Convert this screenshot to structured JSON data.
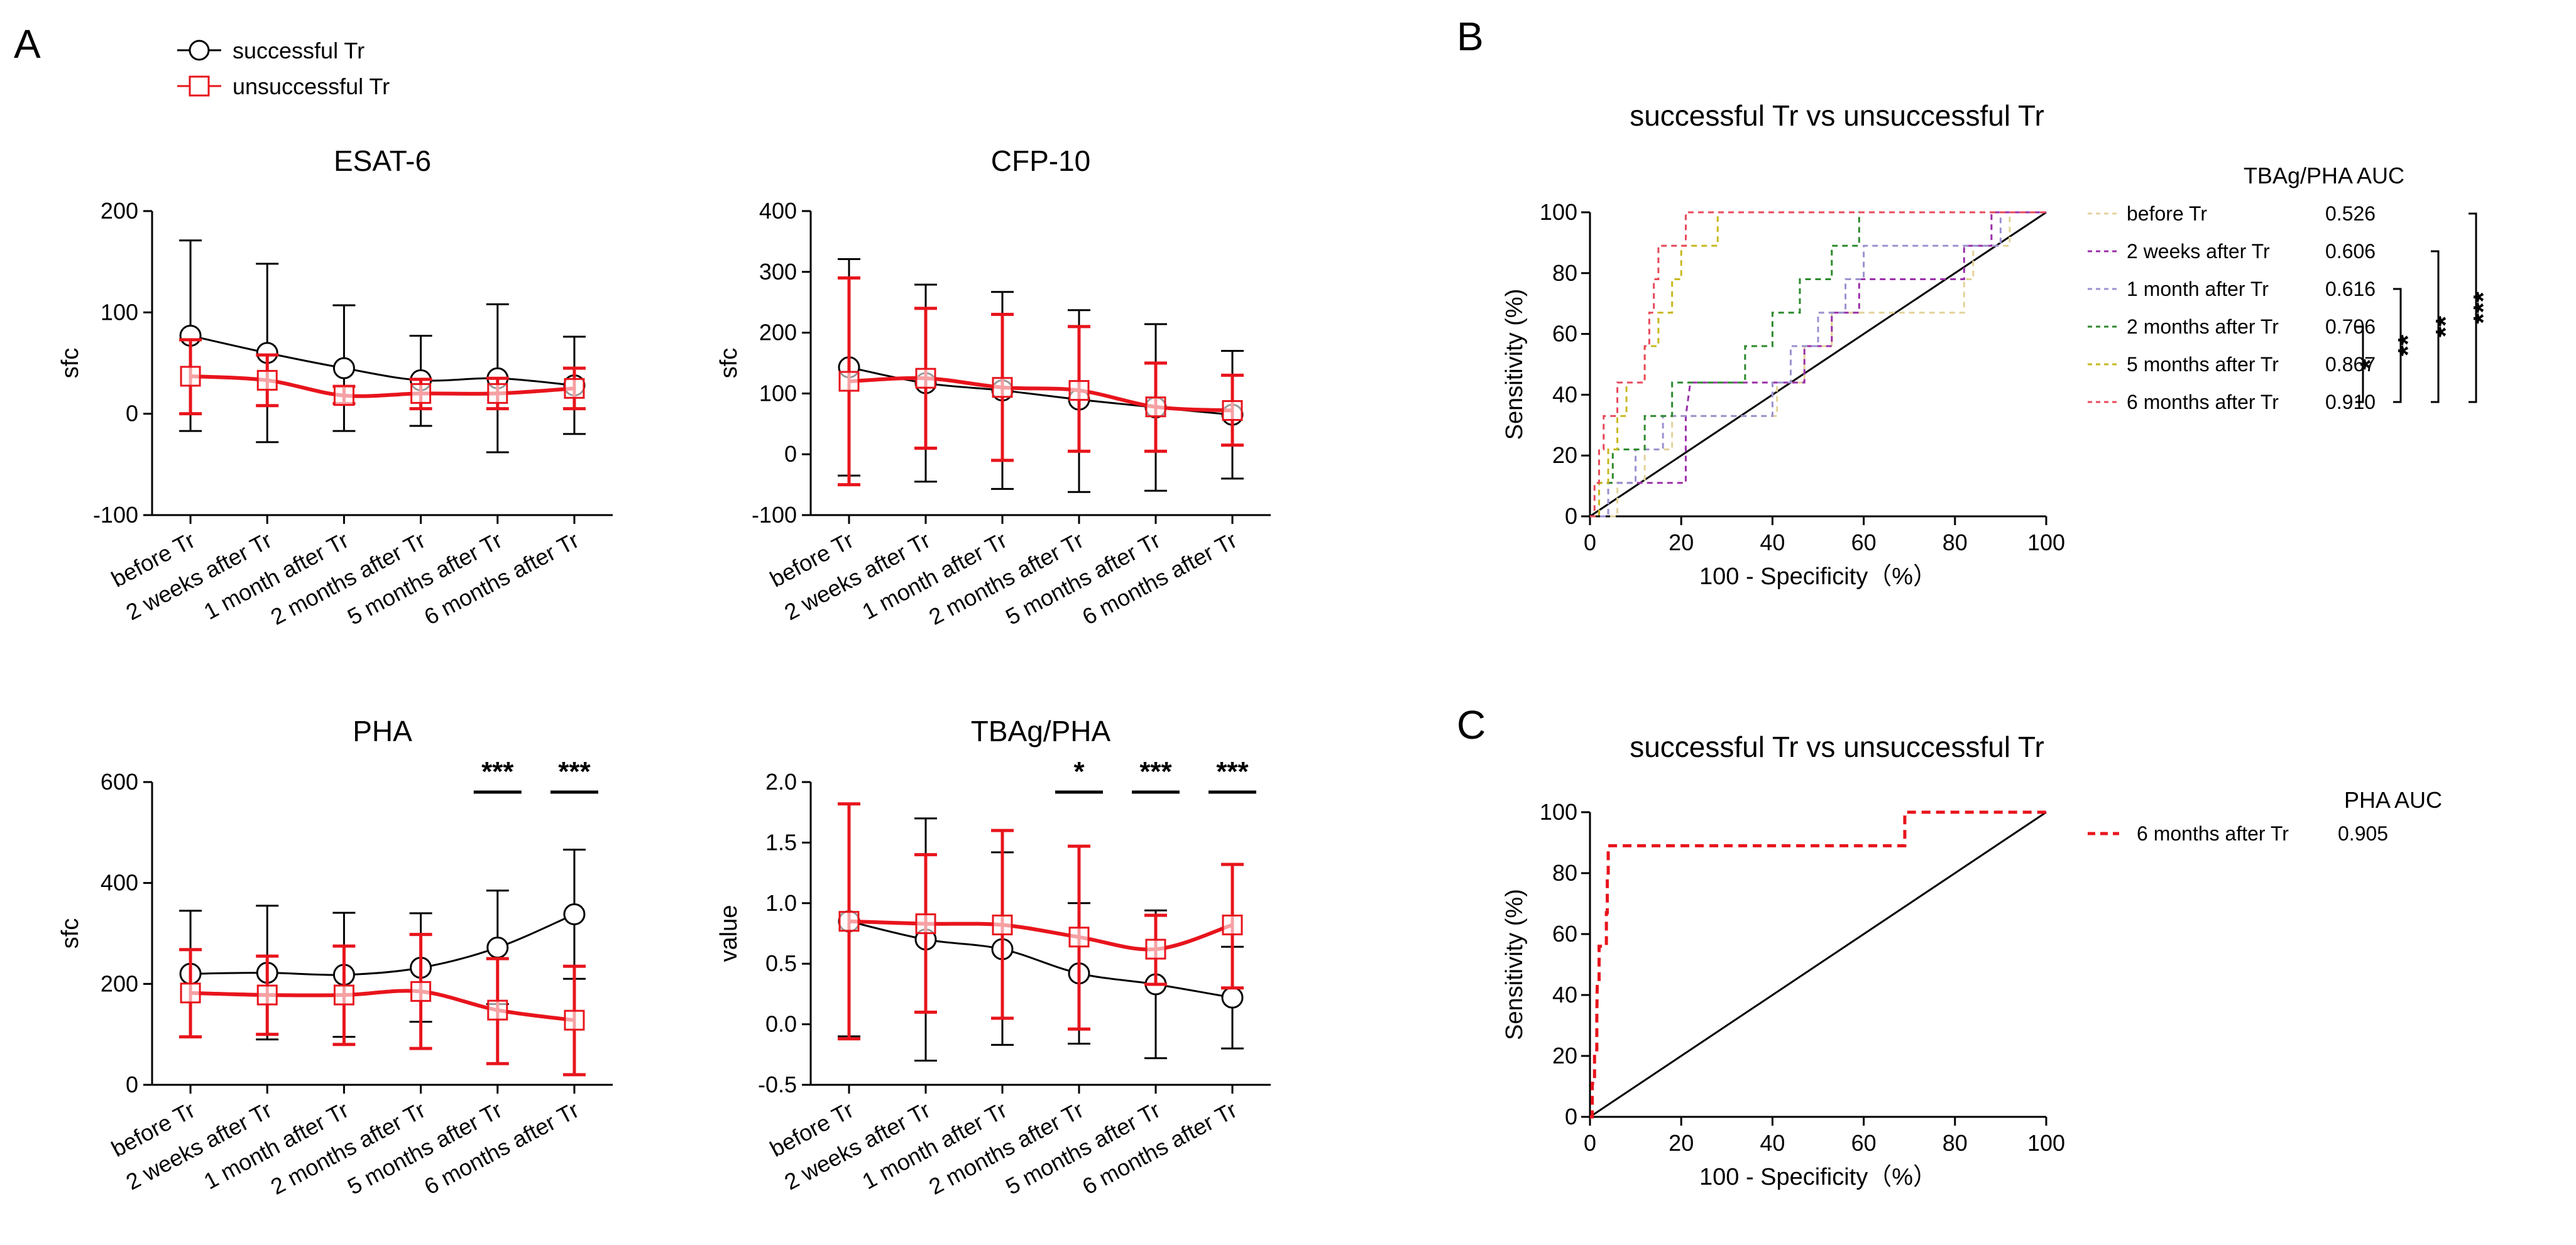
{
  "panels": {
    "A": "A",
    "B": "B",
    "C": "C"
  },
  "legend_A": {
    "successful": {
      "label": "successful Tr",
      "color": "#000000"
    },
    "unsuccessful": {
      "label": "unsuccessful Tr",
      "color": "#e8141c"
    }
  },
  "chart_data": [
    {
      "type": "line",
      "title": "ESAT-6",
      "xlabel": "",
      "ylabel": "sfc",
      "categories": [
        "before Tr",
        "2 weeks after Tr",
        "1 month after Tr",
        "2 months after Tr",
        "5 months after Tr",
        "6 months after Tr"
      ],
      "ylim": [
        -100,
        200
      ],
      "yticks": [
        -100,
        0,
        100,
        200
      ],
      "ytick_labels": [
        "-100",
        "0",
        "100",
        "200"
      ],
      "series": [
        {
          "name": "successful Tr",
          "color": "#000000",
          "values": [
            77,
            60,
            45,
            33,
            35,
            28
          ],
          "lower": [
            -17,
            -28,
            -17,
            -12,
            -38,
            -20
          ],
          "upper": [
            171,
            148,
            107,
            77,
            108,
            76
          ]
        },
        {
          "name": "unsuccessful Tr",
          "color": "#e8141c",
          "values": [
            37,
            33,
            18,
            20,
            20,
            25
          ],
          "lower": [
            0,
            8,
            10,
            5,
            5,
            5
          ],
          "upper": [
            73,
            58,
            27,
            34,
            35,
            45
          ]
        }
      ],
      "significance": []
    },
    {
      "type": "line",
      "title": "CFP-10",
      "xlabel": "",
      "ylabel": "sfc",
      "categories": [
        "before Tr",
        "2 weeks after Tr",
        "1 month after Tr",
        "2 months after Tr",
        "5 months after Tr",
        "6 months after Tr"
      ],
      "ylim": [
        -100,
        400
      ],
      "yticks": [
        -100,
        0,
        100,
        200,
        300,
        400
      ],
      "ytick_labels": [
        "-100",
        "0",
        "100",
        "200",
        "300",
        "400"
      ],
      "series": [
        {
          "name": "successful Tr",
          "color": "#000000",
          "values": [
            143,
            117,
            105,
            90,
            77,
            65
          ],
          "lower": [
            -35,
            -45,
            -57,
            -62,
            -60,
            -40
          ],
          "upper": [
            321,
            279,
            267,
            237,
            214,
            170
          ]
        },
        {
          "name": "unsuccessful Tr",
          "color": "#e8141c",
          "values": [
            120,
            125,
            110,
            105,
            78,
            72
          ],
          "lower": [
            -50,
            10,
            -10,
            5,
            5,
            15
          ],
          "upper": [
            290,
            240,
            230,
            210,
            150,
            130
          ]
        }
      ],
      "significance": []
    },
    {
      "type": "line",
      "title": "PHA",
      "xlabel": "",
      "ylabel": "sfc",
      "categories": [
        "before Tr",
        "2 weeks after Tr",
        "1 month after Tr",
        "2 months after Tr",
        "5 months after Tr",
        "6 months after Tr"
      ],
      "ylim": [
        0,
        600
      ],
      "yticks": [
        0,
        200,
        400,
        600
      ],
      "ytick_labels": [
        "0",
        "200",
        "400",
        "600"
      ],
      "series": [
        {
          "name": "successful Tr",
          "color": "#000000",
          "values": [
            220,
            222,
            218,
            232,
            272,
            338
          ],
          "lower": [
            95,
            90,
            95,
            125,
            160,
            210
          ],
          "upper": [
            345,
            355,
            341,
            340,
            385,
            466
          ]
        },
        {
          "name": "unsuccessful Tr",
          "color": "#e8141c",
          "values": [
            182,
            178,
            178,
            185,
            148,
            128
          ],
          "lower": [
            95,
            100,
            80,
            72,
            42,
            20
          ],
          "upper": [
            268,
            255,
            275,
            298,
            250,
            235
          ]
        }
      ],
      "significance": [
        {
          "index": 4,
          "label": "***"
        },
        {
          "index": 5,
          "label": "***"
        }
      ]
    },
    {
      "type": "line",
      "title": "TBAg/PHA",
      "xlabel": "",
      "ylabel": "value",
      "categories": [
        "before Tr",
        "2 weeks after Tr",
        "1 month after Tr",
        "2 months after Tr",
        "5 months after Tr",
        "6 months after Tr"
      ],
      "ylim": [
        -0.5,
        2.0
      ],
      "yticks": [
        -0.5,
        0,
        0.5,
        1.0,
        1.5,
        2.0
      ],
      "ytick_labels": [
        "-0.5",
        "0.0",
        "0.5",
        "1.0",
        "1.5",
        "2.0"
      ],
      "series": [
        {
          "name": "successful Tr",
          "color": "#000000",
          "values": [
            0.85,
            0.7,
            0.62,
            0.42,
            0.33,
            0.22
          ],
          "lower": [
            -0.1,
            -0.3,
            -0.17,
            -0.16,
            -0.28,
            -0.2
          ],
          "upper": [
            1.82,
            1.7,
            1.42,
            1.0,
            0.94,
            0.64
          ]
        },
        {
          "name": "unsuccessful Tr",
          "color": "#e8141c",
          "values": [
            0.85,
            0.83,
            0.82,
            0.72,
            0.62,
            0.82
          ],
          "lower": [
            -0.12,
            0.1,
            0.05,
            -0.04,
            0.33,
            0.3
          ],
          "upper": [
            1.82,
            1.4,
            1.6,
            1.47,
            0.9,
            1.32
          ]
        }
      ],
      "significance": [
        {
          "index": 3,
          "label": "*"
        },
        {
          "index": 4,
          "label": "***"
        },
        {
          "index": 5,
          "label": "***"
        }
      ]
    },
    {
      "type": "roc",
      "title": "successful Tr vs unsuccessful Tr",
      "xlabel": "100 - Specificity（%）",
      "ylabel": "Sensitivity (%)",
      "xlim": [
        0,
        100
      ],
      "ylim": [
        0,
        100
      ],
      "ticks": [
        0,
        20,
        40,
        60,
        80,
        100
      ],
      "legend_title": "TBAg/PHA AUC",
      "series": [
        {
          "name": "before Tr",
          "auc": "0.526",
          "color": "#e3d39a",
          "points": [
            [
              0,
              0
            ],
            [
              6,
              0
            ],
            [
              6,
              11
            ],
            [
              12,
              11
            ],
            [
              12,
              22
            ],
            [
              18,
              22
            ],
            [
              18,
              33
            ],
            [
              41,
              33
            ],
            [
              41,
              44
            ],
            [
              47,
              44
            ],
            [
              47,
              56
            ],
            [
              53,
              56
            ],
            [
              53,
              67
            ],
            [
              82,
              67
            ],
            [
              82,
              78
            ],
            [
              84,
              78
            ],
            [
              84,
              89
            ],
            [
              92,
              89
            ],
            [
              92,
              100
            ],
            [
              100,
              100
            ]
          ]
        },
        {
          "name": "2 weeks after Tr",
          "auc": "0.606",
          "color": "#9a2ea8",
          "points": [
            [
              0,
              0
            ],
            [
              4,
              0
            ],
            [
              4,
              11
            ],
            [
              12,
              11
            ],
            [
              18,
              11
            ],
            [
              21,
              11
            ],
            [
              21,
              22
            ],
            [
              21,
              33
            ],
            [
              22,
              44
            ],
            [
              42,
              44
            ],
            [
              47,
              44
            ],
            [
              47,
              56
            ],
            [
              53,
              56
            ],
            [
              53,
              67
            ],
            [
              59,
              67
            ],
            [
              59,
              78
            ],
            [
              82,
              78
            ],
            [
              82,
              89
            ],
            [
              88,
              89
            ],
            [
              88,
              100
            ],
            [
              100,
              100
            ]
          ]
        },
        {
          "name": "1 month after Tr",
          "auc": "0.616",
          "color": "#9b91d0",
          "points": [
            [
              0,
              0
            ],
            [
              4,
              0
            ],
            [
              4,
              11
            ],
            [
              10,
              11
            ],
            [
              10,
              22
            ],
            [
              16,
              22
            ],
            [
              16,
              33
            ],
            [
              40,
              33
            ],
            [
              40,
              44
            ],
            [
              44,
              44
            ],
            [
              44,
              56
            ],
            [
              50,
              56
            ],
            [
              50,
              67
            ],
            [
              56,
              67
            ],
            [
              56,
              78
            ],
            [
              60,
              78
            ],
            [
              60,
              89
            ],
            [
              90,
              89
            ],
            [
              90,
              100
            ],
            [
              100,
              100
            ]
          ]
        },
        {
          "name": "2 months after Tr",
          "auc": "0.706",
          "color": "#2c8a2c",
          "points": [
            [
              0,
              0
            ],
            [
              2,
              0
            ],
            [
              2,
              11
            ],
            [
              5,
              11
            ],
            [
              5,
              22
            ],
            [
              12,
              22
            ],
            [
              12,
              33
            ],
            [
              18,
              33
            ],
            [
              18,
              44
            ],
            [
              34,
              44
            ],
            [
              34,
              56
            ],
            [
              40,
              56
            ],
            [
              40,
              67
            ],
            [
              46,
              67
            ],
            [
              46,
              78
            ],
            [
              53,
              78
            ],
            [
              53,
              89
            ],
            [
              59,
              89
            ],
            [
              59,
              100
            ],
            [
              100,
              100
            ]
          ]
        },
        {
          "name": "5 months after Tr",
          "auc": "0.867",
          "color": "#c8b820",
          "points": [
            [
              0,
              0
            ],
            [
              2,
              0
            ],
            [
              2,
              11
            ],
            [
              4,
              11
            ],
            [
              4,
              22
            ],
            [
              6,
              22
            ],
            [
              6,
              33
            ],
            [
              8,
              33
            ],
            [
              8,
              44
            ],
            [
              10,
              44
            ],
            [
              12,
              44
            ],
            [
              12,
              56
            ],
            [
              15,
              56
            ],
            [
              15,
              67
            ],
            [
              18,
              67
            ],
            [
              18,
              78
            ],
            [
              20,
              78
            ],
            [
              20,
              89
            ],
            [
              28,
              89
            ],
            [
              28,
              100
            ],
            [
              100,
              100
            ]
          ]
        },
        {
          "name": "6 months after Tr",
          "auc": "0.910",
          "color": "#e84a5a",
          "points": [
            [
              0,
              0
            ],
            [
              1,
              0
            ],
            [
              1,
              11
            ],
            [
              2,
              11
            ],
            [
              2,
              22
            ],
            [
              3,
              22
            ],
            [
              3,
              33
            ],
            [
              6,
              33
            ],
            [
              6,
              44
            ],
            [
              12,
              44
            ],
            [
              12,
              56
            ],
            [
              13,
              56
            ],
            [
              13,
              67
            ],
            [
              14,
              67
            ],
            [
              14,
              78
            ],
            [
              15,
              78
            ],
            [
              15,
              89
            ],
            [
              21,
              89
            ],
            [
              21,
              100
            ],
            [
              100,
              100
            ]
          ]
        }
      ],
      "brackets": [
        {
          "label": "*",
          "from": 3,
          "to": 5
        },
        {
          "label": "**",
          "from": 2,
          "to": 5
        },
        {
          "label": "**",
          "from": 1,
          "to": 5
        },
        {
          "label": "***",
          "from": 0,
          "to": 5
        }
      ]
    },
    {
      "type": "roc",
      "title": "successful Tr vs unsuccessful Tr",
      "xlabel": "100 - Specificity（%）",
      "ylabel": "Sensitivity (%)",
      "xlim": [
        0,
        100
      ],
      "ylim": [
        0,
        100
      ],
      "ticks": [
        0,
        20,
        40,
        60,
        80,
        100
      ],
      "legend_title": "PHA AUC",
      "series": [
        {
          "name": "6 months after Tr",
          "auc": "0.905",
          "color": "#e8141c",
          "points": [
            [
              0,
              0
            ],
            [
              0.5,
              0
            ],
            [
              0.5,
              11
            ],
            [
              1,
              11
            ],
            [
              1,
              22
            ],
            [
              1.5,
              22
            ],
            [
              1.5,
              33
            ],
            [
              1.6,
              44
            ],
            [
              2,
              44
            ],
            [
              2,
              56
            ],
            [
              3.6,
              56
            ],
            [
              3.6,
              67
            ],
            [
              3.8,
              67
            ],
            [
              3.8,
              78
            ],
            [
              4,
              78
            ],
            [
              4,
              89
            ],
            [
              69,
              89
            ],
            [
              69,
              100
            ],
            [
              100,
              100
            ]
          ]
        }
      ],
      "brackets": []
    }
  ]
}
